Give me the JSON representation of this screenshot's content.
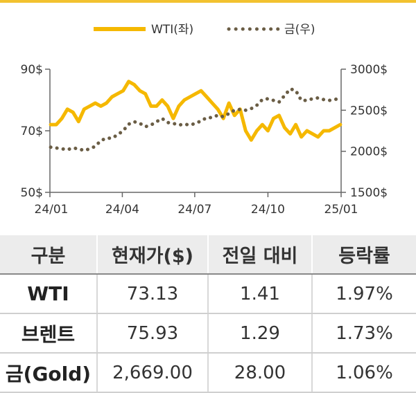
{
  "chart_data": {
    "type": "line",
    "legend": [
      {
        "name": "WTI(좌)",
        "color": "#f5b800",
        "style": "solid"
      },
      {
        "name": "금(우)",
        "color": "#6a5d45",
        "style": "dotted"
      }
    ],
    "x_ticks": [
      "24/01",
      "24/04",
      "24/07",
      "24/10",
      "25/01"
    ],
    "y_left": {
      "ticks": [
        "50$",
        "70$",
        "90$"
      ],
      "min": 50,
      "max": 90
    },
    "y_right": {
      "ticks": [
        "1500$",
        "2000$",
        "2500$",
        "3000$"
      ],
      "min": 1500,
      "max": 3000
    },
    "series": [
      {
        "name": "WTI(좌)",
        "axis": "left",
        "x": [
          "2024-01-02",
          "2024-01-09",
          "2024-01-16",
          "2024-01-23",
          "2024-01-30",
          "2024-02-06",
          "2024-02-13",
          "2024-02-20",
          "2024-02-27",
          "2024-03-05",
          "2024-03-12",
          "2024-03-19",
          "2024-03-26",
          "2024-04-02",
          "2024-04-09",
          "2024-04-16",
          "2024-04-23",
          "2024-04-30",
          "2024-05-07",
          "2024-05-14",
          "2024-05-21",
          "2024-05-28",
          "2024-06-04",
          "2024-06-11",
          "2024-06-18",
          "2024-06-25",
          "2024-07-02",
          "2024-07-09",
          "2024-07-16",
          "2024-07-23",
          "2024-07-30",
          "2024-08-06",
          "2024-08-13",
          "2024-08-20",
          "2024-08-27",
          "2024-09-03",
          "2024-09-10",
          "2024-09-17",
          "2024-09-24",
          "2024-10-01",
          "2024-10-08",
          "2024-10-15",
          "2024-10-22",
          "2024-10-29",
          "2024-11-05",
          "2024-11-12",
          "2024-11-19",
          "2024-11-26",
          "2024-12-03",
          "2024-12-10",
          "2024-12-17",
          "2024-12-24",
          "2024-12-31"
        ],
        "values": [
          72,
          72,
          74,
          77,
          76,
          73,
          77,
          78,
          79,
          78,
          79,
          81,
          82,
          83,
          86,
          85,
          83,
          82,
          78,
          78,
          80,
          78,
          74,
          78,
          80,
          81,
          82,
          83,
          81,
          79,
          77,
          74,
          79,
          75,
          77,
          70,
          67,
          70,
          72,
          70,
          74,
          75,
          71,
          69,
          72,
          68,
          70,
          69,
          68,
          70,
          70,
          71,
          72
        ]
      },
      {
        "name": "금(우)",
        "axis": "right",
        "x": [
          "2024-01-02",
          "2024-01-09",
          "2024-01-16",
          "2024-01-23",
          "2024-01-30",
          "2024-02-06",
          "2024-02-13",
          "2024-02-20",
          "2024-02-27",
          "2024-03-05",
          "2024-03-12",
          "2024-03-19",
          "2024-03-26",
          "2024-04-02",
          "2024-04-09",
          "2024-04-16",
          "2024-04-23",
          "2024-04-30",
          "2024-05-07",
          "2024-05-14",
          "2024-05-21",
          "2024-05-28",
          "2024-06-04",
          "2024-06-11",
          "2024-06-18",
          "2024-06-25",
          "2024-07-02",
          "2024-07-09",
          "2024-07-16",
          "2024-07-23",
          "2024-07-30",
          "2024-08-06",
          "2024-08-13",
          "2024-08-20",
          "2024-08-27",
          "2024-09-03",
          "2024-09-10",
          "2024-09-17",
          "2024-09-24",
          "2024-10-01",
          "2024-10-08",
          "2024-10-15",
          "2024-10-22",
          "2024-10-29",
          "2024-11-05",
          "2024-11-12",
          "2024-11-19",
          "2024-11-26",
          "2024-12-03",
          "2024-12-10",
          "2024-12-17",
          "2024-12-24",
          "2024-12-31"
        ],
        "values": [
          2050,
          2040,
          2030,
          2020,
          2040,
          2030,
          2010,
          2030,
          2060,
          2130,
          2160,
          2160,
          2200,
          2250,
          2330,
          2360,
          2340,
          2300,
          2320,
          2360,
          2400,
          2350,
          2340,
          2320,
          2330,
          2320,
          2340,
          2370,
          2410,
          2410,
          2440,
          2420,
          2460,
          2500,
          2510,
          2500,
          2520,
          2560,
          2630,
          2640,
          2620,
          2600,
          2680,
          2760,
          2740,
          2620,
          2620,
          2640,
          2650,
          2630,
          2620,
          2630,
          2650
        ]
      }
    ]
  },
  "table": {
    "headers": [
      "구분",
      "현재가($)",
      "전일 대비",
      "등락률"
    ],
    "rows": [
      {
        "name": "WTI",
        "price": "73.13",
        "change": "1.41",
        "rate": "1.97%"
      },
      {
        "name": "브렌트",
        "price": "75.93",
        "change": "1.29",
        "rate": "1.73%"
      },
      {
        "name": "금(Gold)",
        "price": "2,669.00",
        "change": "28.00",
        "rate": "1.06%"
      }
    ]
  }
}
